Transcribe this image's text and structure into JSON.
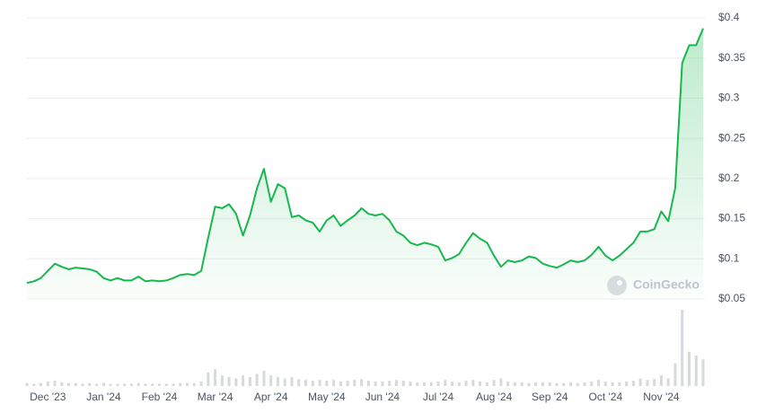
{
  "chart_data": {
    "type": "line",
    "watermark": "CoinGecko",
    "color": "#16b84e",
    "volume_color": "#d6d9de",
    "grid": true,
    "ylim": [
      0.05,
      0.4
    ],
    "yticks": [
      {
        "value": 0.05,
        "label": "$0.05"
      },
      {
        "value": 0.1,
        "label": "$0.1"
      },
      {
        "value": 0.15,
        "label": "$0.15"
      },
      {
        "value": 0.2,
        "label": "$0.2"
      },
      {
        "value": 0.25,
        "label": "$0.25"
      },
      {
        "value": 0.3,
        "label": "$0.3"
      },
      {
        "value": 0.35,
        "label": "$0.35"
      },
      {
        "value": 0.4,
        "label": "$0.4"
      }
    ],
    "y2lim": [
      0,
      100
    ],
    "categories": [
      null,
      null,
      null,
      "Dec '23",
      null,
      null,
      null,
      null,
      null,
      null,
      null,
      "Jan '24",
      null,
      null,
      null,
      null,
      null,
      null,
      null,
      "Feb '24",
      null,
      null,
      null,
      null,
      null,
      null,
      null,
      "Mar '24",
      null,
      null,
      null,
      null,
      null,
      null,
      null,
      "Apr '24",
      null,
      null,
      null,
      null,
      null,
      null,
      null,
      "May '24",
      null,
      null,
      null,
      null,
      null,
      null,
      null,
      "Jun '24",
      null,
      null,
      null,
      null,
      null,
      null,
      null,
      "Jul '24",
      null,
      null,
      null,
      null,
      null,
      null,
      null,
      "Aug '24",
      null,
      null,
      null,
      null,
      null,
      null,
      null,
      "Sep '24",
      null,
      null,
      null,
      null,
      null,
      null,
      null,
      "Oct '24",
      null,
      null,
      null,
      null,
      null,
      null,
      null,
      "Nov '24",
      null,
      null,
      null,
      null,
      null,
      null
    ],
    "series": [
      {
        "name": "Price",
        "values": [
          0.07,
          0.072,
          0.076,
          0.085,
          0.094,
          0.09,
          0.087,
          0.089,
          0.088,
          0.087,
          0.084,
          0.076,
          0.073,
          0.076,
          0.073,
          0.073,
          0.078,
          0.072,
          0.073,
          0.072,
          0.073,
          0.076,
          0.08,
          0.081,
          0.08,
          0.085,
          0.126,
          0.165,
          0.163,
          0.168,
          0.156,
          0.129,
          0.154,
          0.188,
          0.212,
          0.171,
          0.193,
          0.188,
          0.152,
          0.154,
          0.148,
          0.145,
          0.134,
          0.148,
          0.154,
          0.141,
          0.148,
          0.154,
          0.163,
          0.156,
          0.154,
          0.156,
          0.148,
          0.134,
          0.129,
          0.12,
          0.117,
          0.12,
          0.118,
          0.115,
          0.098,
          0.101,
          0.106,
          0.12,
          0.132,
          0.125,
          0.12,
          0.104,
          0.09,
          0.098,
          0.096,
          0.098,
          0.103,
          0.101,
          0.094,
          0.091,
          0.089,
          0.093,
          0.098,
          0.096,
          0.098,
          0.105,
          0.115,
          0.104,
          0.098,
          0.104,
          0.112,
          0.12,
          0.134,
          0.134,
          0.137,
          0.159,
          0.147,
          0.188,
          0.344,
          0.366,
          0.366,
          0.387
        ]
      },
      {
        "name": "Volume",
        "axis": "y2",
        "values": [
          4,
          3,
          4,
          6,
          7,
          5,
          4,
          4,
          3,
          4,
          3,
          4,
          3,
          3,
          3,
          3,
          4,
          3,
          3,
          3,
          3,
          3,
          4,
          4,
          4,
          6,
          18,
          22,
          14,
          12,
          10,
          14,
          12,
          16,
          20,
          14,
          12,
          10,
          12,
          9,
          8,
          7,
          8,
          7,
          8,
          6,
          7,
          8,
          9,
          7,
          6,
          6,
          7,
          8,
          7,
          6,
          5,
          5,
          5,
          6,
          8,
          6,
          5,
          7,
          8,
          6,
          5,
          8,
          10,
          6,
          5,
          5,
          4,
          5,
          5,
          5,
          4,
          4,
          5,
          4,
          5,
          6,
          8,
          6,
          5,
          5,
          6,
          7,
          10,
          8,
          9,
          14,
          10,
          30,
          100,
          45,
          40,
          35
        ]
      }
    ]
  }
}
